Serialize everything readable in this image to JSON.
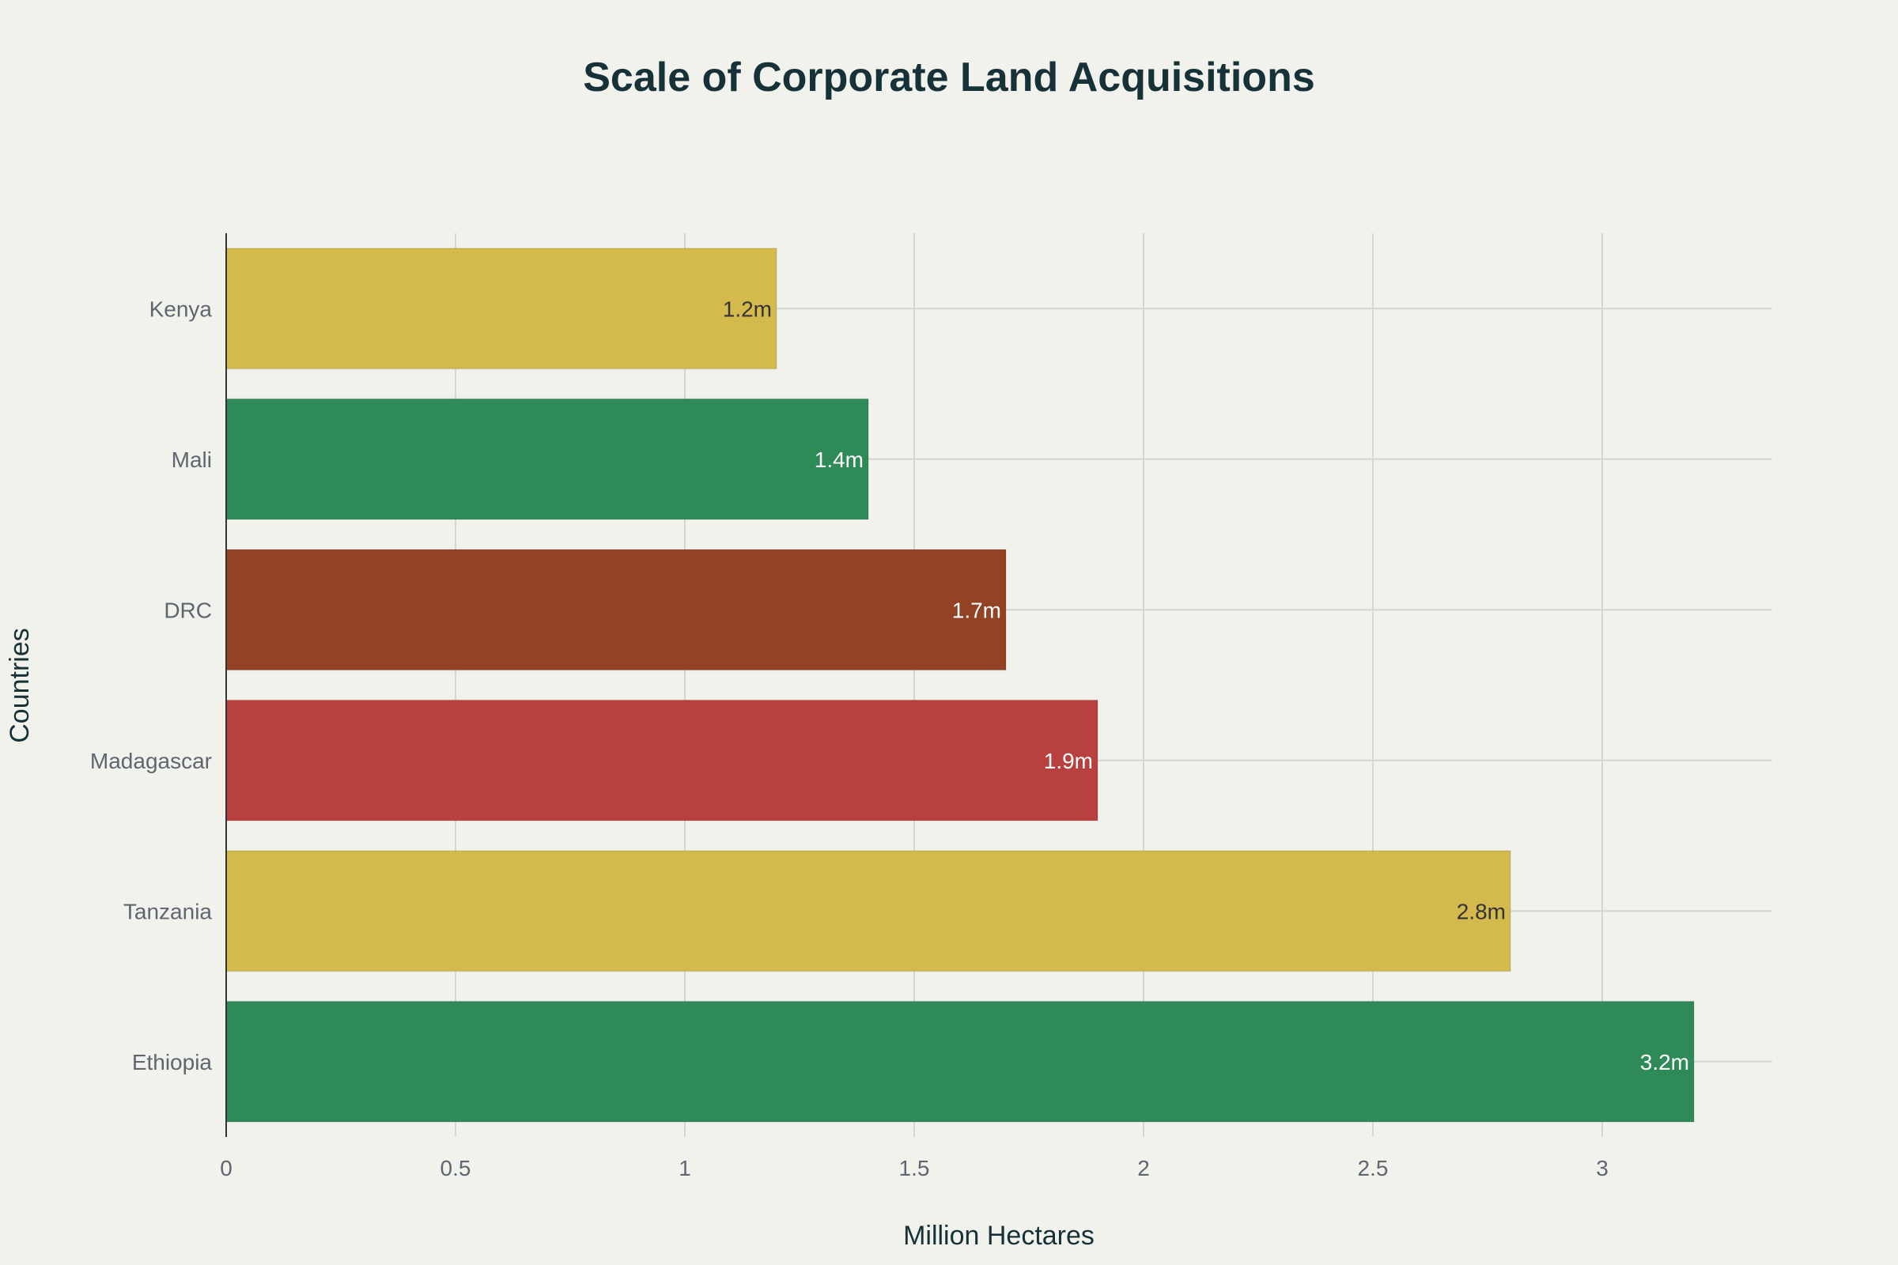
{
  "chart_data": {
    "type": "bar",
    "orientation": "horizontal",
    "title": "Scale of Corporate Land Acquisitions",
    "xlabel": "Million Hectares",
    "ylabel": "Countries",
    "xlim": [
      0,
      3.37
    ],
    "xticks": [
      0,
      0.5,
      1,
      1.5,
      2,
      2.5,
      3
    ],
    "xtick_labels": [
      "0",
      "0.5",
      "1",
      "1.5",
      "2",
      "2.5",
      "3"
    ],
    "grid": true,
    "categories": [
      "Ethiopia",
      "Tanzania",
      "Madagascar",
      "DRC",
      "Mali",
      "Kenya"
    ],
    "values": [
      3.2,
      2.8,
      1.9,
      1.7,
      1.4,
      1.2
    ],
    "data_labels": [
      "3.2m",
      "2.8m",
      "1.9m",
      "1.7m",
      "1.4m",
      "1.2m"
    ],
    "colors": [
      "#2E8B57",
      "#D4BA4C",
      "#B8403E",
      "#934224",
      "#2E8B57",
      "#D4BA4C"
    ],
    "label_colors": [
      "#FFFFFF",
      "#333333",
      "#FFFFFF",
      "#FFFFFF",
      "#FFFFFF",
      "#333333"
    ],
    "background": "#F2F2ED"
  }
}
